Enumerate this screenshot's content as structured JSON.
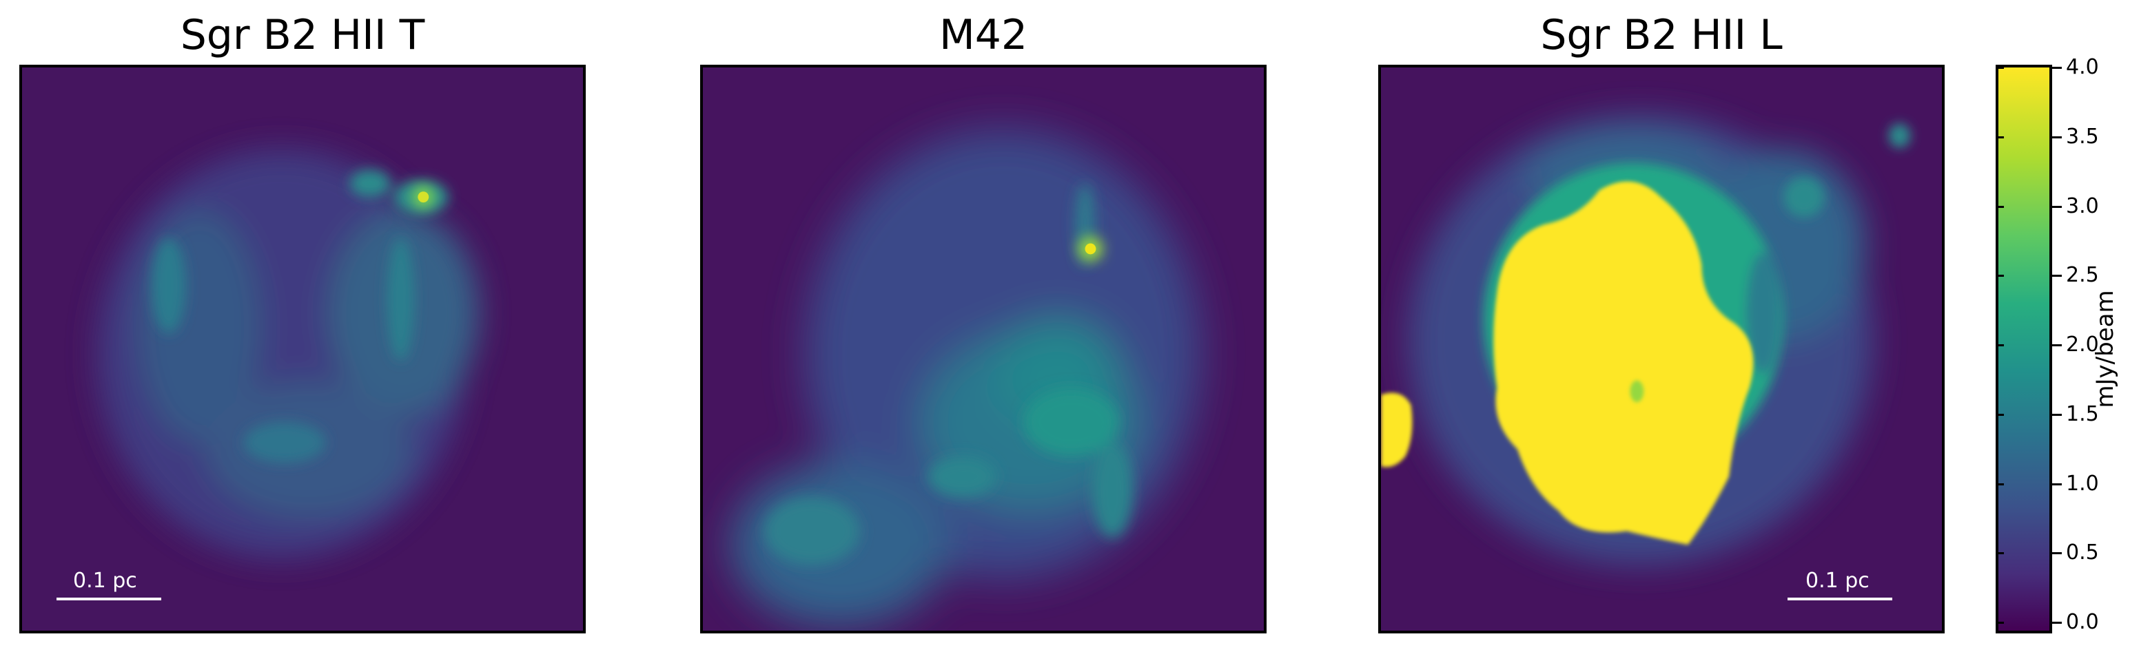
{
  "panels": [
    {
      "title": "Sgr B2 HII T",
      "scalebar": "0.1 pc"
    },
    {
      "title": "M42"
    },
    {
      "title": "Sgr B2 HII L",
      "scalebar": "0.1 pc"
    }
  ],
  "colorbar": {
    "label": "mJy/beam",
    "ticks": [
      "4.0",
      "3.5",
      "3.0",
      "2.5",
      "2.0",
      "1.5",
      "1.0",
      "0.5",
      "0.0"
    ],
    "min": 0.0,
    "max": 4.0,
    "colormap": "viridis"
  },
  "colors": {
    "low": "#440154",
    "high": "#fde725"
  }
}
